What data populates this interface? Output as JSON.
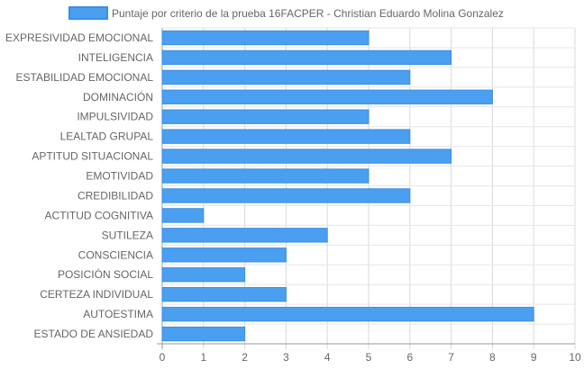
{
  "chart_data": {
    "type": "bar",
    "orientation": "horizontal",
    "categories": [
      "EXPRESIVIDAD EMOCIONAL",
      "INTELIGENCIA",
      "ESTABILIDAD EMOCIONAL",
      "DOMINACIÓN",
      "IMPULSIVIDAD",
      "LEALTAD GRUPAL",
      "APTITUD SITUACIONAL",
      "EMOTIVIDAD",
      "CREDIBILIDAD",
      "ACTITUD COGNITIVA",
      "SUTILEZA",
      "CONSCIENCIA",
      "POSICIÓN SOCIAL",
      "CERTEZA INDIVIDUAL",
      "AUTOESTIMA",
      "ESTADO DE ANSIEDAD"
    ],
    "series": [
      {
        "name": "Puntaje por criterio de la prueba 16FACPER - Christian Eduardo Molina Gonzalez",
        "values": [
          5,
          7,
          6,
          8,
          5,
          6,
          7,
          5,
          6,
          1,
          4,
          3,
          2,
          3,
          9,
          2
        ],
        "color": "#4a9ff0",
        "border_color": "#3a8ee6"
      }
    ],
    "xlim": [
      0,
      10
    ],
    "x_ticks": [
      "0",
      "1",
      "2",
      "3",
      "4",
      "5",
      "6",
      "7",
      "8",
      "9",
      "10"
    ],
    "grid": true,
    "legend": "top-center"
  }
}
